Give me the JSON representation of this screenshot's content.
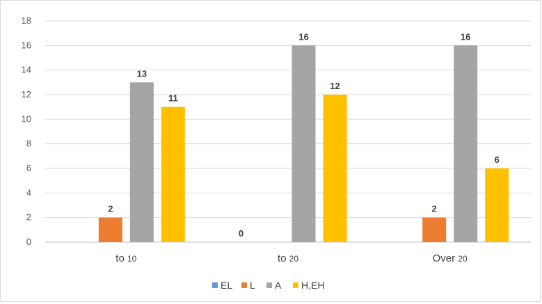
{
  "chart_data": {
    "type": "bar",
    "categories": [
      {
        "main": "to",
        "sub": "10"
      },
      {
        "main": "to",
        "sub": "20"
      },
      {
        "main": "Over",
        "sub": "20"
      }
    ],
    "series": [
      {
        "name": "EL",
        "color": "#5B9BD5",
        "values": [
          0,
          0,
          0
        ],
        "labels": [
          "",
          "0",
          ""
        ]
      },
      {
        "name": "L",
        "color": "#ED7D31",
        "values": [
          2,
          0,
          2
        ],
        "labels": [
          "2",
          "",
          "2"
        ]
      },
      {
        "name": "A",
        "color": "#A5A5A5",
        "values": [
          13,
          16,
          16
        ],
        "labels": [
          "13",
          "16",
          "16"
        ]
      },
      {
        "name": "H,EH",
        "color": "#FFC000",
        "values": [
          11,
          12,
          6
        ],
        "labels": [
          "11",
          "12",
          "6"
        ]
      }
    ],
    "ylim": [
      0,
      18
    ],
    "yticks": [
      "0",
      "2",
      "4",
      "6",
      "8",
      "10",
      "12",
      "14",
      "16",
      "18"
    ],
    "grid": true,
    "legend_position": "bottom"
  }
}
